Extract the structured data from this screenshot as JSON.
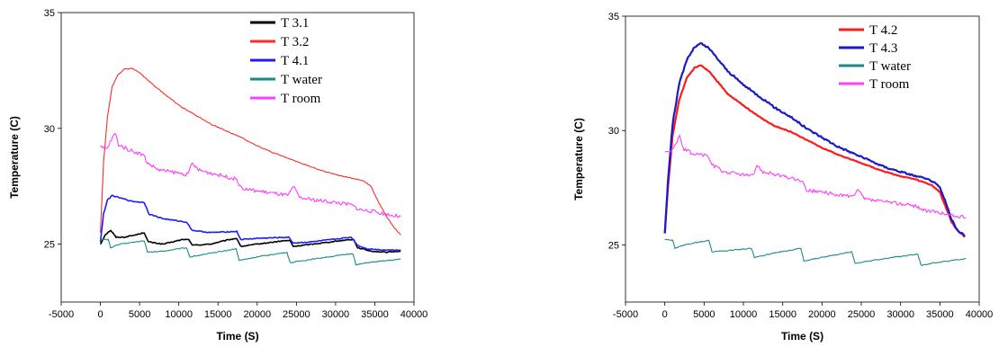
{
  "chart_data": [
    {
      "type": "line",
      "title": "",
      "xlabel": "Time (S)",
      "ylabel": "Temperature (C)",
      "xlim": [
        -5000,
        40000
      ],
      "ylim": [
        22.5,
        35
      ],
      "xticks": [
        "-5000",
        "0",
        "5000",
        "10000",
        "15000",
        "20000",
        "25000",
        "30000",
        "35000",
        "40000"
      ],
      "yticks": [
        "25",
        "30",
        "35"
      ],
      "grid": false,
      "legend_position": "top-right",
      "series": [
        {
          "name": "T 3.1",
          "color": "#000000",
          "points": [
            [
              0,
              25.0
            ],
            [
              600,
              25.4
            ],
            [
              1300,
              25.6
            ],
            [
              2000,
              25.3
            ],
            [
              3000,
              25.3
            ],
            [
              4500,
              25.4
            ],
            [
              5600,
              25.5
            ],
            [
              6100,
              25.1
            ],
            [
              8000,
              25.0
            ],
            [
              10500,
              25.2
            ],
            [
              11300,
              25.2
            ],
            [
              11700,
              24.95
            ],
            [
              14000,
              25.0
            ],
            [
              16500,
              25.2
            ],
            [
              17400,
              25.25
            ],
            [
              17900,
              24.9
            ],
            [
              20000,
              25.0
            ],
            [
              23500,
              25.15
            ],
            [
              24200,
              25.15
            ],
            [
              24600,
              24.9
            ],
            [
              27000,
              25.0
            ],
            [
              31800,
              25.2
            ],
            [
              32300,
              25.2
            ],
            [
              32800,
              24.85
            ],
            [
              34500,
              24.7
            ],
            [
              36500,
              24.65
            ],
            [
              38300,
              24.7
            ]
          ]
        },
        {
          "name": "T 3.2",
          "color": "#ff2a2a",
          "points": [
            [
              0,
              25.5
            ],
            [
              400,
              28.5
            ],
            [
              900,
              30.5
            ],
            [
              1500,
              31.8
            ],
            [
              2200,
              32.3
            ],
            [
              3000,
              32.55
            ],
            [
              4000,
              32.6
            ],
            [
              5000,
              32.4
            ],
            [
              6000,
              32.1
            ],
            [
              7000,
              31.8
            ],
            [
              8500,
              31.4
            ],
            [
              10000,
              31.0
            ],
            [
              12000,
              30.6
            ],
            [
              14000,
              30.2
            ],
            [
              16000,
              29.9
            ],
            [
              18000,
              29.6
            ],
            [
              20000,
              29.25
            ],
            [
              22000,
              28.95
            ],
            [
              24000,
              28.7
            ],
            [
              26000,
              28.45
            ],
            [
              28000,
              28.2
            ],
            [
              30000,
              28.0
            ],
            [
              32000,
              27.85
            ],
            [
              33500,
              27.75
            ],
            [
              34500,
              27.5
            ],
            [
              35500,
              26.8
            ],
            [
              36500,
              26.2
            ],
            [
              37500,
              25.7
            ],
            [
              38300,
              25.4
            ]
          ]
        },
        {
          "name": "T 4.1",
          "color": "#1c1cff",
          "points": [
            [
              0,
              25.1
            ],
            [
              400,
              26.3
            ],
            [
              900,
              26.9
            ],
            [
              1500,
              27.1
            ],
            [
              2500,
              27.0
            ],
            [
              4000,
              26.85
            ],
            [
              5600,
              26.8
            ],
            [
              6200,
              26.3
            ],
            [
              8000,
              26.1
            ],
            [
              11000,
              25.95
            ],
            [
              11700,
              25.6
            ],
            [
              14000,
              25.5
            ],
            [
              17400,
              25.55
            ],
            [
              17900,
              25.2
            ],
            [
              20000,
              25.25
            ],
            [
              24000,
              25.3
            ],
            [
              24600,
              25.05
            ],
            [
              27000,
              25.1
            ],
            [
              32000,
              25.3
            ],
            [
              32800,
              24.95
            ],
            [
              34000,
              24.8
            ],
            [
              36000,
              24.75
            ],
            [
              38300,
              24.75
            ]
          ]
        },
        {
          "name": "T water",
          "color": "#1a8a8a",
          "points": [
            [
              0,
              25.2
            ],
            [
              1000,
              25.2
            ],
            [
              1300,
              24.85
            ],
            [
              2500,
              25.0
            ],
            [
              5600,
              25.15
            ],
            [
              6000,
              24.65
            ],
            [
              8000,
              24.7
            ],
            [
              11000,
              24.85
            ],
            [
              11400,
              24.45
            ],
            [
              14000,
              24.6
            ],
            [
              17300,
              24.8
            ],
            [
              17700,
              24.3
            ],
            [
              20000,
              24.45
            ],
            [
              23800,
              24.65
            ],
            [
              24200,
              24.2
            ],
            [
              27000,
              24.35
            ],
            [
              32200,
              24.6
            ],
            [
              32600,
              24.1
            ],
            [
              34000,
              24.2
            ],
            [
              38300,
              24.35
            ]
          ]
        },
        {
          "name": "T room",
          "color": "#ff3cff",
          "points": [
            [
              0,
              29.2
            ],
            [
              800,
              29.1
            ],
            [
              1400,
              29.5
            ],
            [
              1900,
              29.8
            ],
            [
              2300,
              29.3
            ],
            [
              3500,
              29.1
            ],
            [
              5500,
              28.85
            ],
            [
              6000,
              28.5
            ],
            [
              7500,
              28.2
            ],
            [
              9500,
              28.1
            ],
            [
              11200,
              28.0
            ],
            [
              11700,
              28.5
            ],
            [
              12500,
              28.2
            ],
            [
              15000,
              28.0
            ],
            [
              17400,
              27.8
            ],
            [
              18000,
              27.4
            ],
            [
              20000,
              27.3
            ],
            [
              22000,
              27.2
            ],
            [
              24000,
              27.1
            ],
            [
              24600,
              27.5
            ],
            [
              25400,
              27.0
            ],
            [
              27500,
              26.9
            ],
            [
              30000,
              26.8
            ],
            [
              32000,
              26.7
            ],
            [
              33000,
              26.5
            ],
            [
              35000,
              26.4
            ],
            [
              37000,
              26.25
            ],
            [
              38300,
              26.2
            ]
          ]
        }
      ]
    },
    {
      "type": "line",
      "title": "",
      "xlabel": "Time (S)",
      "ylabel": "Temperature (C)",
      "xlim": [
        -5000,
        40000
      ],
      "ylim": [
        22.5,
        35
      ],
      "xticks": [
        "-5000",
        "0",
        "5000",
        "10000",
        "15000",
        "20000",
        "25000",
        "30000",
        "35000",
        "40000"
      ],
      "yticks": [
        "25",
        "30",
        "35"
      ],
      "grid": false,
      "legend_position": "top-right",
      "series": [
        {
          "name": "T 4.2",
          "color": "#ff1a1a",
          "points": [
            [
              0,
              25.5
            ],
            [
              400,
              27.5
            ],
            [
              1000,
              29.8
            ],
            [
              1800,
              31.3
            ],
            [
              2800,
              32.3
            ],
            [
              3800,
              32.75
            ],
            [
              4600,
              32.85
            ],
            [
              5600,
              32.6
            ],
            [
              6800,
              32.1
            ],
            [
              8000,
              31.6
            ],
            [
              10000,
              31.1
            ],
            [
              12000,
              30.6
            ],
            [
              14000,
              30.2
            ],
            [
              16000,
              29.95
            ],
            [
              18000,
              29.6
            ],
            [
              20000,
              29.25
            ],
            [
              22000,
              28.95
            ],
            [
              24000,
              28.7
            ],
            [
              26000,
              28.45
            ],
            [
              28000,
              28.2
            ],
            [
              30000,
              28.0
            ],
            [
              32000,
              27.85
            ],
            [
              34000,
              27.6
            ],
            [
              35000,
              27.3
            ],
            [
              35800,
              26.6
            ],
            [
              36500,
              26.0
            ],
            [
              37300,
              25.6
            ],
            [
              38200,
              25.35
            ]
          ]
        },
        {
          "name": "T 4.3",
          "color": "#1a1acc",
          "points": [
            [
              0,
              25.5
            ],
            [
              400,
              27.8
            ],
            [
              1000,
              30.3
            ],
            [
              1800,
              32.0
            ],
            [
              2800,
              33.1
            ],
            [
              3800,
              33.65
            ],
            [
              4600,
              33.8
            ],
            [
              5600,
              33.6
            ],
            [
              6800,
              33.1
            ],
            [
              8000,
              32.6
            ],
            [
              10000,
              32.0
            ],
            [
              12000,
              31.5
            ],
            [
              14000,
              31.0
            ],
            [
              16000,
              30.6
            ],
            [
              18000,
              30.1
            ],
            [
              20000,
              29.7
            ],
            [
              22000,
              29.3
            ],
            [
              24000,
              29.0
            ],
            [
              26000,
              28.7
            ],
            [
              28000,
              28.4
            ],
            [
              30000,
              28.2
            ],
            [
              32000,
              28.0
            ],
            [
              34000,
              27.8
            ],
            [
              35000,
              27.5
            ],
            [
              35800,
              26.8
            ],
            [
              36500,
              26.1
            ],
            [
              37300,
              25.6
            ],
            [
              38200,
              25.4
            ]
          ]
        },
        {
          "name": "T water",
          "color": "#1a8a8a",
          "points": [
            [
              0,
              25.25
            ],
            [
              1000,
              25.2
            ],
            [
              1300,
              24.85
            ],
            [
              2500,
              25.0
            ],
            [
              5600,
              25.2
            ],
            [
              6000,
              24.7
            ],
            [
              8000,
              24.75
            ],
            [
              11000,
              24.85
            ],
            [
              11400,
              24.45
            ],
            [
              14000,
              24.65
            ],
            [
              17300,
              24.85
            ],
            [
              17700,
              24.3
            ],
            [
              20000,
              24.45
            ],
            [
              23800,
              24.7
            ],
            [
              24200,
              24.2
            ],
            [
              27000,
              24.35
            ],
            [
              32200,
              24.6
            ],
            [
              32600,
              24.1
            ],
            [
              34000,
              24.2
            ],
            [
              38300,
              24.4
            ]
          ]
        },
        {
          "name": "T room",
          "color": "#ff3cff",
          "points": [
            [
              0,
              29.1
            ],
            [
              800,
              29.1
            ],
            [
              1400,
              29.4
            ],
            [
              1900,
              29.8
            ],
            [
              2300,
              29.2
            ],
            [
              3500,
              29.0
            ],
            [
              5500,
              28.9
            ],
            [
              6000,
              28.5
            ],
            [
              7500,
              28.2
            ],
            [
              9500,
              28.1
            ],
            [
              11200,
              28.0
            ],
            [
              11700,
              28.5
            ],
            [
              12500,
              28.2
            ],
            [
              15000,
              28.0
            ],
            [
              17400,
              27.8
            ],
            [
              18000,
              27.4
            ],
            [
              20000,
              27.3
            ],
            [
              22000,
              27.2
            ],
            [
              24000,
              27.1
            ],
            [
              24600,
              27.4
            ],
            [
              25400,
              27.0
            ],
            [
              27500,
              26.9
            ],
            [
              30000,
              26.8
            ],
            [
              32000,
              26.7
            ],
            [
              33000,
              26.5
            ],
            [
              35000,
              26.4
            ],
            [
              37000,
              26.25
            ],
            [
              38300,
              26.2
            ]
          ]
        }
      ]
    }
  ]
}
